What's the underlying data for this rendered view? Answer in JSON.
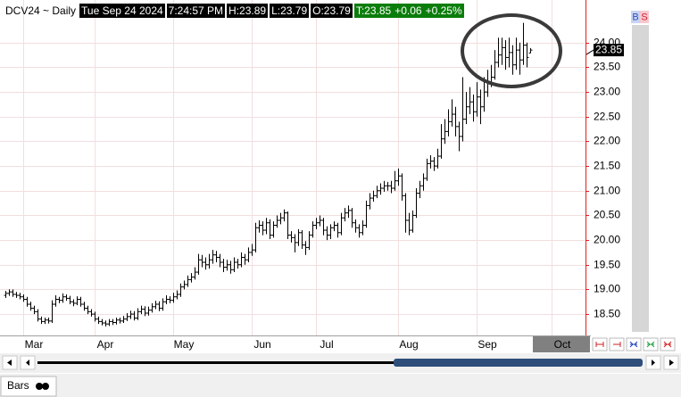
{
  "header": {
    "symbol": "DCV24 ~ Daily",
    "date": "Tue Sep 24 2024",
    "time": "7:24:57 PM",
    "high": "H:23.89",
    "low": "L:23.79",
    "open": "O:23.79",
    "last": "T:23.85",
    "change": "+0.06",
    "change_pct": "+0.25%"
  },
  "buttons": {
    "buy": "B",
    "sell": "S"
  },
  "tab": "Bars",
  "chart_data": {
    "type": "ohlc",
    "color": "#000000",
    "grid": true,
    "categories": [
      null,
      null,
      null,
      null,
      null,
      null,
      null,
      null,
      "Mar",
      null,
      null,
      null,
      null,
      null,
      null,
      null,
      null,
      null,
      null,
      null,
      null,
      null,
      null,
      null,
      null,
      null,
      null,
      null,
      "Apr",
      null,
      null,
      null,
      null,
      null,
      null,
      null,
      null,
      null,
      null,
      null,
      null,
      null,
      null,
      null,
      null,
      null,
      null,
      null,
      null,
      null,
      "May",
      null,
      null,
      null,
      null,
      null,
      null,
      null,
      null,
      null,
      null,
      null,
      null,
      null,
      null,
      null,
      null,
      null,
      null,
      null,
      null,
      null,
      "Jun",
      null,
      null,
      null,
      null,
      null,
      null,
      null,
      null,
      null,
      null,
      null,
      null,
      null,
      null,
      null,
      null,
      null,
      "Jul",
      null,
      null,
      null,
      null,
      null,
      null,
      null,
      null,
      null,
      null,
      null,
      null,
      null,
      null,
      null,
      null,
      null,
      null,
      null,
      null,
      null,
      null,
      "Aug",
      null,
      null,
      null,
      null,
      null,
      null,
      null,
      null,
      null,
      null,
      null,
      null,
      null,
      null,
      null,
      null,
      null,
      null,
      null,
      null,
      null,
      "Sep",
      null,
      null,
      null,
      null,
      null,
      null,
      null,
      null,
      null,
      null,
      null,
      null,
      null,
      null,
      null,
      null,
      null,
      null,
      null,
      null,
      "Oct"
    ],
    "open": [
      18.88,
      18.92,
      18.95,
      18.9,
      18.88,
      18.85,
      18.8,
      18.7,
      18.62,
      18.55,
      18.4,
      18.35,
      18.38,
      18.36,
      18.7,
      18.8,
      18.78,
      18.85,
      18.82,
      18.75,
      18.72,
      18.8,
      18.7,
      18.62,
      18.55,
      18.5,
      18.4,
      18.35,
      18.32,
      18.3,
      18.35,
      18.33,
      18.38,
      18.36,
      18.4,
      18.45,
      18.5,
      18.42,
      18.55,
      18.6,
      18.52,
      18.58,
      18.65,
      18.7,
      18.62,
      18.75,
      18.8,
      18.78,
      18.85,
      18.9,
      19.05,
      19.1,
      19.2,
      19.25,
      19.35,
      19.6,
      19.55,
      19.5,
      19.6,
      19.7,
      19.65,
      19.55,
      19.45,
      19.5,
      19.4,
      19.55,
      19.5,
      19.65,
      19.6,
      19.75,
      19.8,
      20.25,
      20.3,
      20.2,
      20.35,
      20.1,
      20.3,
      20.4,
      20.45,
      20.55,
      20.1,
      20.05,
      19.95,
      20.15,
      19.9,
      19.85,
      20.1,
      20.3,
      20.35,
      20.4,
      20.2,
      20.1,
      20.25,
      20.3,
      20.15,
      20.45,
      20.55,
      20.6,
      20.35,
      20.25,
      20.15,
      20.3,
      20.7,
      20.85,
      20.9,
      21.0,
      21.05,
      21.1,
      21.1,
      21.05,
      21.2,
      21.3,
      20.9,
      20.4,
      20.2,
      20.5,
      20.95,
      21.1,
      21.25,
      21.55,
      21.6,
      21.5,
      21.7,
      22.05,
      22.2,
      22.4,
      22.55,
      22.3,
      22.1,
      22.45,
      22.7,
      22.8,
      22.6,
      22.9,
      22.7,
      23.0,
      23.2,
      23.3,
      23.6,
      23.75,
      23.9,
      23.7,
      23.8,
      23.55,
      23.85,
      23.65,
      23.95,
      23.79,
      null,
      null,
      null,
      null,
      null,
      null,
      null,
      null,
      null
    ],
    "high": [
      18.97,
      19.0,
      19.0,
      18.95,
      18.93,
      18.9,
      18.85,
      18.75,
      18.67,
      18.6,
      18.45,
      18.43,
      18.43,
      18.78,
      18.88,
      18.85,
      18.92,
      18.9,
      18.87,
      18.8,
      18.86,
      18.85,
      18.75,
      18.67,
      18.6,
      18.55,
      18.45,
      18.4,
      18.37,
      18.4,
      18.4,
      18.43,
      18.43,
      18.46,
      18.52,
      18.57,
      18.56,
      18.62,
      18.67,
      18.66,
      18.65,
      18.72,
      18.77,
      18.76,
      18.82,
      18.88,
      18.86,
      18.93,
      18.98,
      19.12,
      19.18,
      19.28,
      19.33,
      19.45,
      19.72,
      19.7,
      19.65,
      19.72,
      19.8,
      19.78,
      19.72,
      19.62,
      19.6,
      19.58,
      19.65,
      19.62,
      19.75,
      19.72,
      19.85,
      19.92,
      20.35,
      20.4,
      20.38,
      20.45,
      20.42,
      20.38,
      20.5,
      20.55,
      20.62,
      20.58,
      20.18,
      20.12,
      20.22,
      20.2,
      19.98,
      20.18,
      20.38,
      20.45,
      20.5,
      20.45,
      20.28,
      20.32,
      20.38,
      20.35,
      20.55,
      20.65,
      20.7,
      20.65,
      20.42,
      20.32,
      20.4,
      20.8,
      20.95,
      21.0,
      21.1,
      21.15,
      21.2,
      21.18,
      21.2,
      21.4,
      21.45,
      21.35,
      20.95,
      20.55,
      20.6,
      21.05,
      21.2,
      21.35,
      21.65,
      21.72,
      21.68,
      21.85,
      22.35,
      22.45,
      22.65,
      22.85,
      22.7,
      22.4,
      23.3,
      23.0,
      23.1,
      22.95,
      23.2,
      23.05,
      23.3,
      23.45,
      23.55,
      23.85,
      24.1,
      24.1,
      24.05,
      24.1,
      23.95,
      24.1,
      24.0,
      24.4,
      24.0,
      23.89,
      null,
      null,
      null,
      null,
      null,
      null,
      null,
      null,
      null
    ],
    "low": [
      18.83,
      18.87,
      18.85,
      18.83,
      18.8,
      18.75,
      18.65,
      18.57,
      18.5,
      18.35,
      18.3,
      18.3,
      18.31,
      18.32,
      18.65,
      18.72,
      18.73,
      18.77,
      18.7,
      18.66,
      18.68,
      18.65,
      18.57,
      18.5,
      18.45,
      18.35,
      18.3,
      18.27,
      18.25,
      18.26,
      18.28,
      18.29,
      18.31,
      18.32,
      18.36,
      18.4,
      18.37,
      18.38,
      18.5,
      18.46,
      18.47,
      18.53,
      18.6,
      18.56,
      18.57,
      18.7,
      18.72,
      18.73,
      18.8,
      18.85,
      19.0,
      19.05,
      19.14,
      19.2,
      19.3,
      19.45,
      19.4,
      19.42,
      19.52,
      19.55,
      19.45,
      19.35,
      19.38,
      19.32,
      19.35,
      19.42,
      19.45,
      19.5,
      19.55,
      19.68,
      19.75,
      20.15,
      20.1,
      20.12,
      20.02,
      20.05,
      20.25,
      20.32,
      20.38,
      20.02,
      19.95,
      19.75,
      19.88,
      19.82,
      19.7,
      19.8,
      20.05,
      20.22,
      20.28,
      20.1,
      20.0,
      20.02,
      20.18,
      20.05,
      20.1,
      20.38,
      20.45,
      20.25,
      20.15,
      20.05,
      20.1,
      20.25,
      20.62,
      20.78,
      20.85,
      20.92,
      20.98,
      21.0,
      20.95,
      21.0,
      21.1,
      20.8,
      20.15,
      20.1,
      20.15,
      20.45,
      20.85,
      21.0,
      21.2,
      21.45,
      21.4,
      21.45,
      21.65,
      21.95,
      22.1,
      22.3,
      22.1,
      21.8,
      22.0,
      22.35,
      22.55,
      22.4,
      22.5,
      22.35,
      22.6,
      22.9,
      23.1,
      23.25,
      23.5,
      23.55,
      23.45,
      23.5,
      23.35,
      23.45,
      23.35,
      23.55,
      23.5,
      23.79,
      null,
      null,
      null,
      null,
      null,
      null,
      null,
      null,
      null
    ],
    "close": [
      18.92,
      18.95,
      18.9,
      18.88,
      18.85,
      18.8,
      18.7,
      18.62,
      18.55,
      18.4,
      18.35,
      18.38,
      18.36,
      18.7,
      18.8,
      18.78,
      18.85,
      18.82,
      18.75,
      18.72,
      18.8,
      18.7,
      18.62,
      18.55,
      18.5,
      18.4,
      18.35,
      18.32,
      18.3,
      18.35,
      18.33,
      18.38,
      18.36,
      18.4,
      18.45,
      18.5,
      18.42,
      18.55,
      18.6,
      18.52,
      18.58,
      18.65,
      18.7,
      18.62,
      18.75,
      18.8,
      18.78,
      18.85,
      18.9,
      19.05,
      19.1,
      19.2,
      19.25,
      19.35,
      19.6,
      19.55,
      19.5,
      19.6,
      19.7,
      19.65,
      19.55,
      19.45,
      19.5,
      19.4,
      19.55,
      19.5,
      19.65,
      19.6,
      19.75,
      19.8,
      20.25,
      20.3,
      20.2,
      20.35,
      20.1,
      20.3,
      20.4,
      20.45,
      20.55,
      20.1,
      20.05,
      19.95,
      20.15,
      19.9,
      19.85,
      20.1,
      20.3,
      20.35,
      20.4,
      20.2,
      20.1,
      20.25,
      20.3,
      20.15,
      20.45,
      20.55,
      20.6,
      20.35,
      20.25,
      20.15,
      20.3,
      20.7,
      20.85,
      20.9,
      21.0,
      21.05,
      21.1,
      21.1,
      21.05,
      21.2,
      21.3,
      20.9,
      20.4,
      20.2,
      20.5,
      20.95,
      21.1,
      21.25,
      21.55,
      21.6,
      21.5,
      21.7,
      22.05,
      22.2,
      22.4,
      22.55,
      22.3,
      22.1,
      22.45,
      22.7,
      22.8,
      22.6,
      22.9,
      22.7,
      23.0,
      23.2,
      23.3,
      23.6,
      23.75,
      23.9,
      23.7,
      23.8,
      23.55,
      23.85,
      23.65,
      23.95,
      23.7,
      23.85,
      null,
      null,
      null,
      null,
      null,
      null,
      null,
      null,
      null
    ],
    "last_price": 23.85,
    "ylim": [
      18.14,
      24.81
    ],
    "yticks": [
      {
        "value": 18.5,
        "label": "18.50"
      },
      {
        "value": 19,
        "label": "19.00"
      },
      {
        "value": 19.5,
        "label": "19.50"
      },
      {
        "value": 20,
        "label": "20.00"
      },
      {
        "value": 20.5,
        "label": "20.50"
      },
      {
        "value": 21,
        "label": "21.00"
      },
      {
        "value": 21.5,
        "label": "21.50"
      },
      {
        "value": 22,
        "label": "22.00"
      },
      {
        "value": 22.5,
        "label": "22.50"
      },
      {
        "value": 23,
        "label": "23.00"
      },
      {
        "value": 23.5,
        "label": "23.50"
      },
      {
        "value": 24,
        "label": "24.00"
      }
    ]
  }
}
